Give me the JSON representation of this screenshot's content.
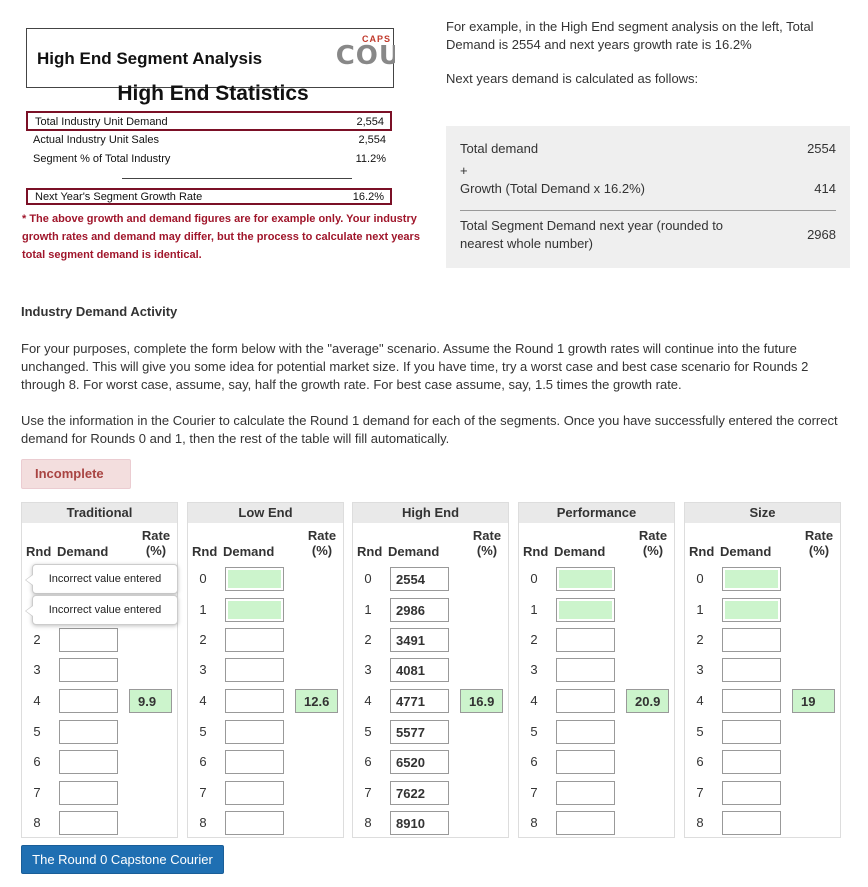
{
  "example_figure": {
    "header_title": "High End Segment Analysis",
    "logo_caps": "CAPS",
    "logo_main": "COU",
    "subtitle": "High End Statistics",
    "rows": [
      {
        "label": "Total Industry Unit Demand",
        "value": "2,554"
      },
      {
        "label": "Actual Industry Unit Sales",
        "value": "2,554"
      },
      {
        "label": "Segment % of Total Industry",
        "value": "11.2%"
      },
      {
        "label": "Next Year's Segment Growth Rate",
        "value": "16.2%"
      }
    ],
    "note": "* The above growth and demand figures are for example only. Your industry growth rates and demand may differ, but the process to calculate next years total segment demand is identical."
  },
  "explanation": {
    "para1": "For example, in the High End segment analysis on the left, Total Demand is 2554 and next years growth rate is 16.2%",
    "para2": "Next years demand is calculated as follows:",
    "calc": {
      "total_label": "Total demand",
      "total_value": "2554",
      "plus": "+",
      "growth_label": "Growth (Total Demand x 16.2%)",
      "growth_value": "414",
      "result_label": "Total Segment Demand next year (rounded to nearest whole number)",
      "result_value": "2968"
    }
  },
  "section_title": "Industry Demand Activity",
  "instructions": {
    "para1": "For your purposes, complete the form below with the \"average\" scenario. Assume the Round 1 growth rates will continue into the future unchanged. This will give you some idea for potential market size. If you have time, try a worst case and best case scenario for Rounds 2 through 8. For worst case, assume, say, half the growth rate. For best case assume, say, 1.5 times the growth rate.",
    "para2": "Use the information in the Courier to calculate the Round 1 demand for each of the segments. Once you have successfully entered the correct demand for Rounds 0 and 1, then the rest of the table will fill automatically."
  },
  "status": "Incomplete",
  "table_headers": {
    "rnd": "Rnd",
    "demand": "Demand",
    "rate": "Rate (%)"
  },
  "segments": [
    {
      "name": "Traditional",
      "rate": "9.9",
      "demands": [
        "",
        "",
        "",
        "",
        "",
        "",
        "",
        "",
        ""
      ],
      "tooltips": [
        "Incorrect value entered",
        "Incorrect value entered"
      ]
    },
    {
      "name": "Low End",
      "rate": "12.6",
      "demands": [
        "",
        "",
        "",
        "",
        "",
        "",
        "",
        "",
        ""
      ]
    },
    {
      "name": "High End",
      "rate": "16.9",
      "demands": [
        "2554",
        "2986",
        "3491",
        "4081",
        "4771",
        "5577",
        "6520",
        "7622",
        "8910"
      ]
    },
    {
      "name": "Performance",
      "rate": "20.9",
      "demands": [
        "",
        "",
        "",
        "",
        "",
        "",
        "",
        "",
        ""
      ]
    },
    {
      "name": "Size",
      "rate": "19",
      "demands": [
        "",
        "",
        "",
        "",
        "",
        "",
        "",
        "",
        ""
      ]
    }
  ],
  "rounds": [
    "0",
    "1",
    "2",
    "3",
    "4",
    "5",
    "6",
    "7",
    "8"
  ],
  "courier_button": "The Round 0 Capstone Courier"
}
